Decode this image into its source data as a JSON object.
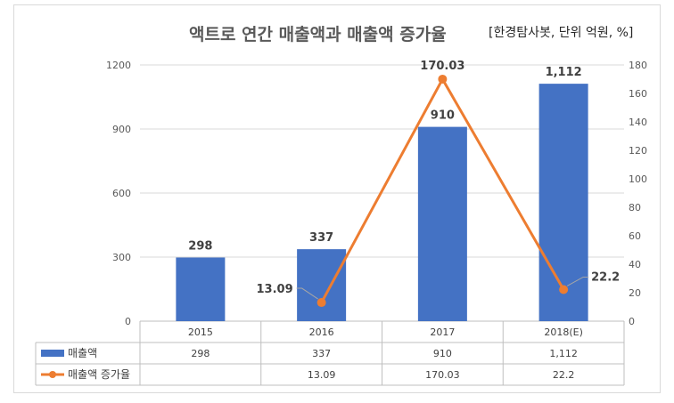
{
  "chart_data": {
    "type": "bar",
    "title": "액트로 연간 매출액과 매출액 증가율",
    "subtitle": "[한경탐사봇, 단위 억원, %]",
    "categories": [
      "2015",
      "2016",
      "2017",
      "2018(E)"
    ],
    "series": [
      {
        "name": "매출액",
        "type": "bar",
        "axis": "left",
        "color": "#4472c4",
        "values": [
          298,
          337,
          910,
          1112
        ],
        "labels": [
          "298",
          "337",
          "910",
          "1,112"
        ]
      },
      {
        "name": "매출액 증가율",
        "type": "line",
        "axis": "right",
        "color": "#ed7d31",
        "values": [
          null,
          13.09,
          170.03,
          22.2
        ],
        "labels": [
          "",
          "13.09",
          "170.03",
          "22.2"
        ]
      }
    ],
    "y_left": {
      "min": 0,
      "max": 1200,
      "ticks": [
        0,
        300,
        600,
        900,
        1200
      ]
    },
    "y_right": {
      "min": 0,
      "max": 180,
      "ticks": [
        0,
        20,
        40,
        60,
        80,
        100,
        120,
        140,
        160,
        180
      ]
    },
    "grid": true,
    "legend": "data-table"
  },
  "table": {
    "rows": [
      {
        "name": "매출액",
        "cells": [
          "298",
          "337",
          "910",
          "1,112"
        ]
      },
      {
        "name": "매출액 증가율",
        "cells": [
          "",
          "13.09",
          "170.03",
          "22.2"
        ]
      }
    ]
  }
}
